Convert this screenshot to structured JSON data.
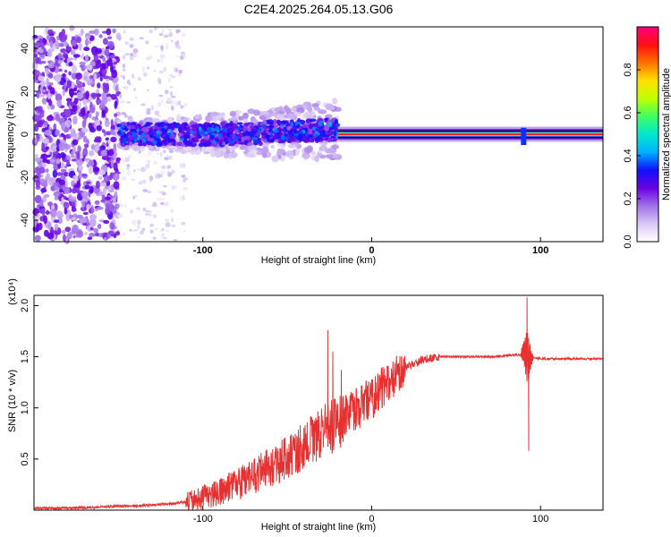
{
  "title": "C2E4.2025.264.05.13.G06",
  "chart_data": [
    {
      "type": "heatmap",
      "title": "C2E4.2025.264.05.13.G06",
      "xlabel": "Height of straight line (km)",
      "ylabel": "Frequency (Hz)",
      "xlim": [
        -200,
        137
      ],
      "ylim": [
        -50,
        50
      ],
      "x_ticks": [
        -100,
        0,
        100
      ],
      "x_tick_labels": [
        "-100",
        "0",
        "100"
      ],
      "y_ticks": [
        -40,
        -20,
        0,
        20,
        40
      ],
      "y_tick_labels": [
        "-40",
        "-20",
        "0",
        "20",
        "40"
      ],
      "colorbar": {
        "label": "Normalized spectral amplitude",
        "range": [
          0,
          1
        ],
        "ticks": [
          0.0,
          0.2,
          0.4,
          0.6,
          0.8
        ],
        "tick_labels": [
          "0.0",
          "0.2",
          "0.4",
          "0.6",
          "0.8"
        ],
        "colors": [
          "#ffffff",
          "#d9c8f5",
          "#a070e8",
          "#6a00e0",
          "#1010ff",
          "#00b0ff",
          "#00e8d0",
          "#40ff60",
          "#c0ff00",
          "#ffe000",
          "#ff7000",
          "#ff1010",
          "#ff0080"
        ]
      },
      "signal_line_hz": 0,
      "scatter_region_km": [
        -200,
        -150
      ],
      "strong_band_km": [
        -20,
        137
      ],
      "spike_km": 90
    },
    {
      "type": "line",
      "xlabel": "Height of straight line (km)",
      "ylabel": "SNR (10 * v/v)",
      "y_scale_label": "(x10⁴)",
      "xlim": [
        -200,
        137
      ],
      "ylim": [
        0,
        2.1
      ],
      "x_ticks": [
        -100,
        0,
        100
      ],
      "x_tick_labels": [
        "-100",
        "0",
        "100"
      ],
      "y_ticks": [
        0.5,
        1.0,
        1.5,
        2.0
      ],
      "y_tick_labels": [
        "0.5",
        "1.0",
        "1.5",
        "2.0"
      ],
      "line_color": "#e83030",
      "series": [
        {
          "name": "SNR",
          "x": [
            -200,
            -180,
            -160,
            -150,
            -140,
            -130,
            -120,
            -110,
            -100,
            -90,
            -80,
            -70,
            -60,
            -50,
            -40,
            -30,
            -20,
            -10,
            0,
            10,
            20,
            30,
            40,
            50,
            60,
            70,
            80,
            88,
            90,
            92,
            94,
            96,
            100,
            110,
            120,
            137
          ],
          "y": [
            0.02,
            0.02,
            0.03,
            0.04,
            0.04,
            0.05,
            0.06,
            0.08,
            0.12,
            0.18,
            0.25,
            0.33,
            0.42,
            0.52,
            0.62,
            0.75,
            0.85,
            0.95,
            1.1,
            1.25,
            1.4,
            1.47,
            1.5,
            1.5,
            1.5,
            1.5,
            1.51,
            1.52,
            1.55,
            1.5,
            1.48,
            1.49,
            1.48,
            1.48,
            1.48,
            1.48
          ]
        }
      ],
      "spikes": [
        {
          "x": -26,
          "y": 1.76
        },
        {
          "x": -23,
          "y": 1.55
        },
        {
          "x": -18,
          "y": 1.37
        },
        {
          "x": 92,
          "y": 2.08
        },
        {
          "x": 93,
          "y": 0.58
        }
      ]
    }
  ]
}
